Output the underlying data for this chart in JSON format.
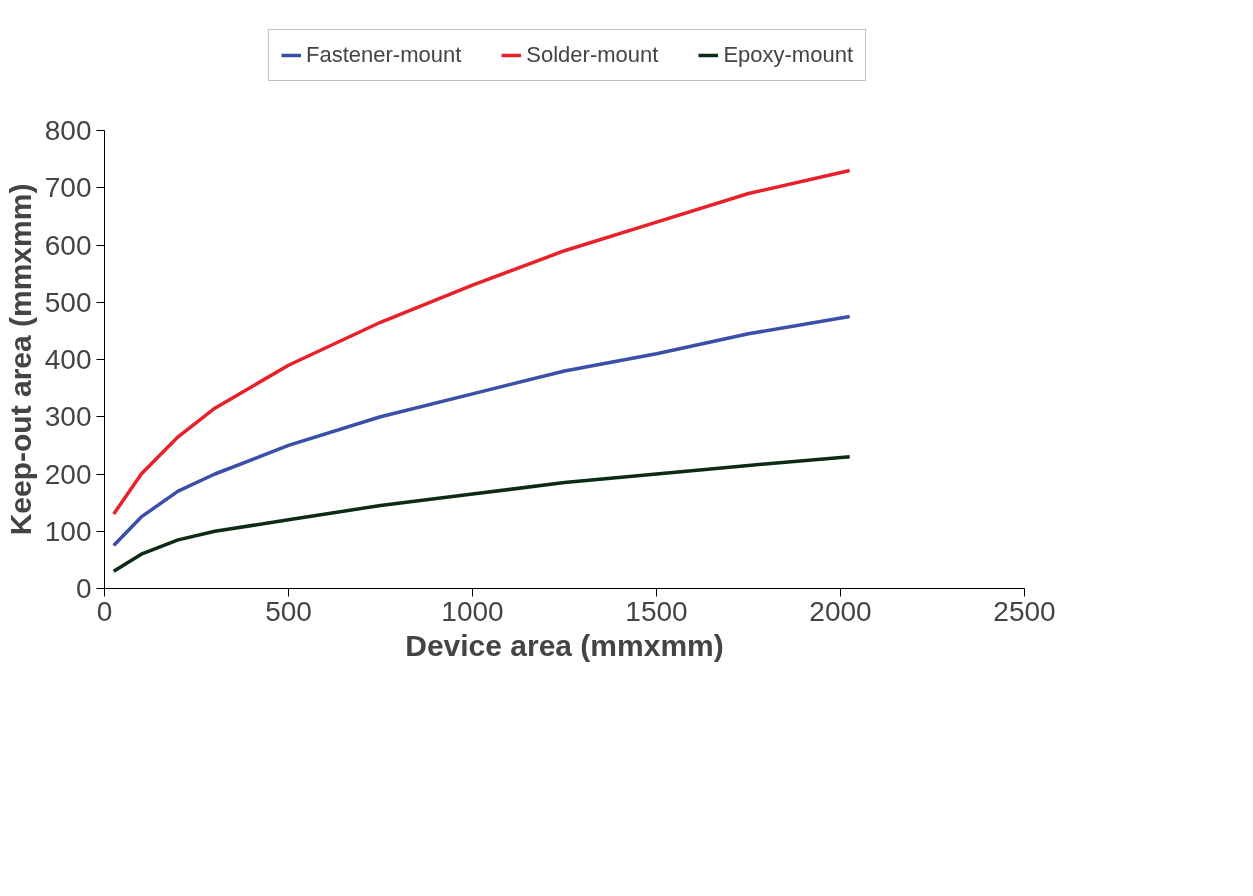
{
  "chart_data": {
    "type": "line",
    "xlabel": "Device area (mmxmm)",
    "ylabel": "Keep-out area (mmxmm)",
    "xlim": [
      0,
      2500
    ],
    "xticks": [
      0,
      500,
      1000,
      1500,
      2000,
      2500
    ],
    "ylim": [
      0,
      800
    ],
    "yticks": [
      0,
      100,
      200,
      300,
      400,
      500,
      600,
      700,
      800
    ],
    "grid": false,
    "legend": "top",
    "line_style": "solid",
    "marker": "none",
    "x": [
      25,
      100,
      200,
      300,
      500,
      750,
      1000,
      1250,
      1500,
      1750,
      2025
    ],
    "series": [
      {
        "name": "Fastener-mount",
        "color": "#3a4fa8",
        "values": [
          75,
          125,
          170,
          200,
          250,
          300,
          340,
          380,
          410,
          445,
          475
        ]
      },
      {
        "name": "Solder-mount",
        "color": "#e8202a",
        "values": [
          130,
          200,
          265,
          315,
          390,
          465,
          530,
          590,
          640,
          690,
          730
        ]
      },
      {
        "name": "Epoxy-mount",
        "color": "#0d2a14",
        "values": [
          30,
          60,
          85,
          100,
          120,
          145,
          165,
          185,
          200,
          215,
          230
        ]
      }
    ]
  }
}
